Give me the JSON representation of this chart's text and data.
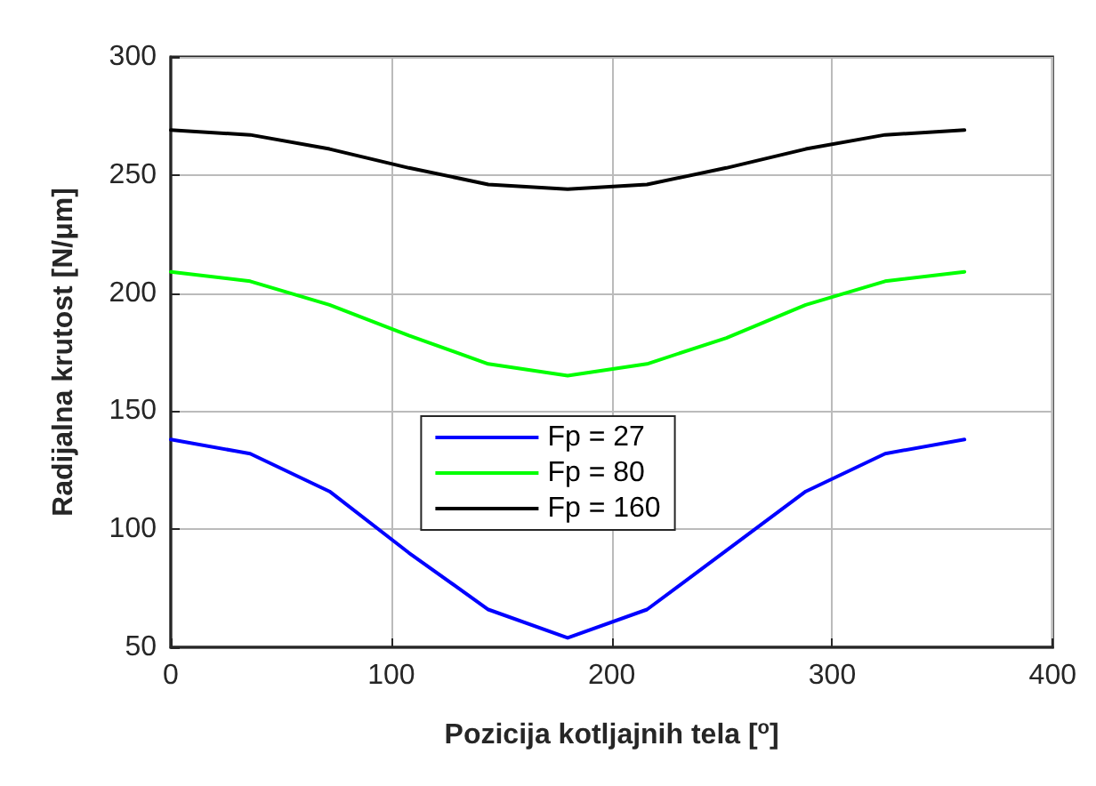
{
  "chart_data": {
    "type": "line",
    "xlabel": "Pozicija kotljajnih tela [$^{o}$]",
    "ylabel": "Radijalna krutost [N/μm]",
    "x": [
      0,
      36,
      72,
      108,
      144,
      180,
      216,
      252,
      288,
      324,
      360
    ],
    "series": [
      {
        "name": "Fp = 27",
        "color": "#0000ff",
        "values": [
          138,
          132,
          116,
          90,
          66,
          54,
          66,
          91,
          116,
          132,
          138
        ]
      },
      {
        "name": "Fp = 80",
        "color": "#00ff00",
        "values": [
          209,
          205,
          195,
          182,
          170,
          165,
          170,
          181,
          195,
          205,
          209
        ]
      },
      {
        "name": "Fp = 160",
        "color": "#000000",
        "values": [
          269,
          267,
          261,
          253,
          246,
          244,
          246,
          253,
          261,
          267,
          269
        ]
      }
    ],
    "xlim": [
      0,
      400
    ],
    "xticks": [
      0,
      100,
      200,
      300,
      400
    ],
    "ylim": [
      50,
      300
    ],
    "yticks": [
      50,
      100,
      150,
      200,
      250,
      300
    ],
    "grid": true,
    "legend": "bottom",
    "marker": "none",
    "line_style": "solid"
  }
}
